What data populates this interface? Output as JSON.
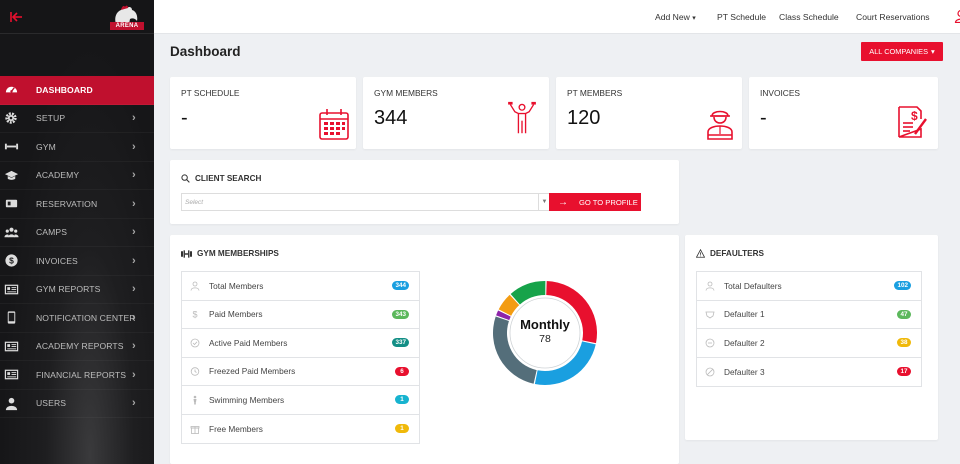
{
  "brand": {
    "logo_text": "ARENA"
  },
  "topbar": {
    "links": [
      "Add New",
      "PT Schedule",
      "Class Schedule",
      "Court Reservations"
    ]
  },
  "page": {
    "title": "Dashboard",
    "companies_button": "ALL COMPANIES"
  },
  "sidebar": {
    "items": [
      {
        "label": "DASHBOARD",
        "icon": "gauge-icon",
        "active": true
      },
      {
        "label": "SETUP",
        "icon": "gear-icon"
      },
      {
        "label": "GYM",
        "icon": "dumbbell-icon"
      },
      {
        "label": "ACADEMY",
        "icon": "graduation-cap-icon"
      },
      {
        "label": "RESERVATION",
        "icon": "calendar-card-icon"
      },
      {
        "label": "CAMPS",
        "icon": "group-icon"
      },
      {
        "label": "INVOICES",
        "icon": "dollar-icon"
      },
      {
        "label": "GYM REPORTS",
        "icon": "report-icon"
      },
      {
        "label": "NOTIFICATION CENTER",
        "icon": "mobile-icon"
      },
      {
        "label": "ACADEMY REPORTS",
        "icon": "report-icon"
      },
      {
        "label": "FINANCIAL REPORTS",
        "icon": "report-icon"
      },
      {
        "label": "USERS",
        "icon": "user-icon"
      }
    ]
  },
  "stats": [
    {
      "label": "PT SCHEDULE",
      "value": "-",
      "icon": "calendar-icon"
    },
    {
      "label": "GYM MEMBERS",
      "value": "344",
      "icon": "athlete-icon"
    },
    {
      "label": "PT MEMBERS",
      "value": "120",
      "icon": "trainer-icon"
    },
    {
      "label": "INVOICES",
      "value": "-",
      "icon": "invoice-icon"
    }
  ],
  "client_search": {
    "title": "CLIENT SEARCH",
    "placeholder": "Select",
    "button": "GO TO PROFILE"
  },
  "gym_memberships": {
    "title": "GYM MEMBERSHIPS",
    "rows": [
      {
        "label": "Total Members",
        "value": "344",
        "color": "#1a9fe0"
      },
      {
        "label": "Paid Members",
        "value": "343",
        "color": "#5cb85c"
      },
      {
        "label": "Active Paid Members",
        "value": "337",
        "color": "#138f86"
      },
      {
        "label": "Freezed Paid Members",
        "value": "6",
        "color": "#e8102e"
      },
      {
        "label": "Swimming Members",
        "value": "1",
        "color": "#17b3cf"
      },
      {
        "label": "Free Members",
        "value": "1",
        "color": "#f0b90a"
      }
    ],
    "donut": {
      "title": "Monthly",
      "value": "78",
      "segments": [
        {
          "fraction": 0.28,
          "color": "#e8102e"
        },
        {
          "fraction": 0.25,
          "color": "#1a9fe0"
        },
        {
          "fraction": 0.27,
          "color": "#546e7a"
        },
        {
          "fraction": 0.02,
          "color": "#8e24aa"
        },
        {
          "fraction": 0.06,
          "color": "#f39c12"
        },
        {
          "fraction": 0.12,
          "color": "#16a34a"
        }
      ]
    }
  },
  "defaulters": {
    "title": "DEFAULTERS",
    "rows": [
      {
        "label": "Total Defaulters",
        "value": "102",
        "color": "#1a9fe0"
      },
      {
        "label": "Defaulter 1",
        "value": "47",
        "color": "#5cb85c"
      },
      {
        "label": "Defaulter 2",
        "value": "38",
        "color": "#f0b90a"
      },
      {
        "label": "Defaulter 3",
        "value": "17",
        "color": "#e8102e"
      }
    ]
  }
}
